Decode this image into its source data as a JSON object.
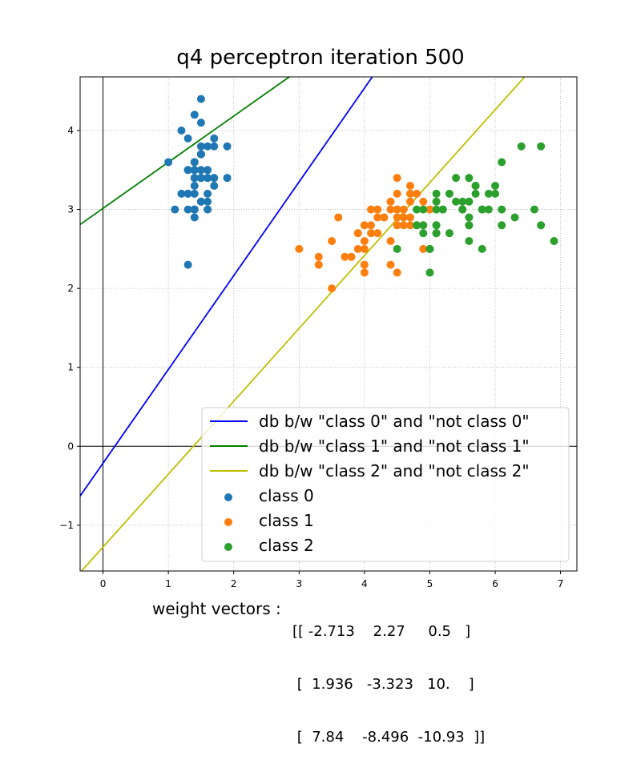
{
  "chart_data": {
    "type": "scatter",
    "title": "q4 perceptron iteration 500",
    "xlabel": "",
    "ylabel": "",
    "xlim": [
      -0.35,
      7.25
    ],
    "ylim": [
      -1.58,
      4.68
    ],
    "xticks": [
      0,
      1,
      2,
      3,
      4,
      5,
      6,
      7
    ],
    "yticks": [
      -1,
      0,
      1,
      2,
      3,
      4
    ],
    "xtick_labels": [
      "0",
      "1",
      "2",
      "3",
      "4",
      "5",
      "6",
      "7"
    ],
    "ytick_labels": [
      "−1",
      "0",
      "1",
      "2",
      "3",
      "4"
    ],
    "grid": true,
    "legend_position": "lower-right",
    "lines": [
      {
        "name": "db b/w \"class 0\" and \"not class 0\"",
        "color": "#0000ff",
        "points": [
          [
            -0.35,
            -0.63
          ],
          [
            4.12,
            4.68
          ]
        ]
      },
      {
        "name": "db b/w \"class 1\" and \"not class 1\"",
        "color": "#008000",
        "points": [
          [
            -0.35,
            2.81
          ],
          [
            2.85,
            4.68
          ]
        ]
      },
      {
        "name": "db b/w \"class 2\" and \"not class 2\"",
        "color": "#bfbf00",
        "points": [
          [
            -0.35,
            -1.6
          ],
          [
            6.45,
            4.68
          ]
        ]
      }
    ],
    "series": [
      {
        "name": "class 0",
        "color": "#1f77b4",
        "x": [
          1.4,
          1.4,
          1.3,
          1.5,
          1.4,
          1.7,
          1.4,
          1.5,
          1.4,
          1.5,
          1.5,
          1.6,
          1.4,
          1.1,
          1.2,
          1.5,
          1.3,
          1.4,
          1.7,
          1.5,
          1.7,
          1.5,
          1.0,
          1.7,
          1.9,
          1.6,
          1.6,
          1.5,
          1.4,
          1.6,
          1.6,
          1.5,
          1.5,
          1.4,
          1.5,
          1.2,
          1.3,
          1.4,
          1.3,
          1.5,
          1.3,
          1.3,
          1.3,
          1.6,
          1.9,
          1.4,
          1.6,
          1.4,
          1.5,
          1.4
        ],
        "y": [
          3.5,
          3.0,
          3.2,
          3.1,
          3.6,
          3.9,
          3.4,
          3.4,
          2.9,
          3.1,
          3.7,
          3.4,
          3.0,
          3.0,
          4.0,
          4.4,
          3.9,
          3.5,
          3.8,
          3.8,
          3.4,
          3.7,
          3.6,
          3.3,
          3.4,
          3.0,
          3.4,
          3.5,
          3.4,
          3.2,
          3.1,
          3.4,
          4.1,
          4.2,
          3.1,
          3.2,
          3.5,
          3.6,
          3.0,
          3.4,
          3.5,
          2.3,
          3.2,
          3.5,
          3.8,
          3.0,
          3.8,
          3.2,
          3.7,
          3.3
        ]
      },
      {
        "name": "class 1",
        "color": "#ff7f0e",
        "x": [
          4.7,
          4.5,
          4.9,
          4.0,
          4.6,
          4.5,
          4.7,
          3.3,
          4.6,
          3.9,
          3.5,
          4.2,
          4.0,
          4.7,
          3.6,
          4.4,
          4.5,
          4.1,
          4.5,
          3.9,
          4.8,
          4.0,
          4.9,
          4.7,
          4.3,
          4.4,
          4.8,
          5.0,
          4.5,
          3.5,
          3.8,
          3.7,
          3.9,
          5.1,
          4.5,
          4.5,
          4.7,
          4.4,
          4.1,
          4.0,
          4.4,
          4.6,
          4.0,
          3.3,
          4.2,
          4.2,
          4.2,
          4.3,
          3.0,
          4.1
        ],
        "y": [
          3.2,
          3.2,
          3.1,
          2.3,
          2.8,
          2.8,
          3.3,
          2.4,
          2.9,
          2.7,
          2.0,
          3.0,
          2.2,
          2.9,
          2.9,
          3.1,
          3.0,
          2.7,
          2.2,
          2.5,
          3.2,
          2.8,
          2.5,
          2.8,
          2.9,
          3.0,
          2.8,
          3.0,
          2.9,
          2.6,
          2.4,
          2.4,
          2.7,
          2.7,
          3.0,
          3.4,
          3.1,
          2.3,
          3.0,
          2.5,
          2.6,
          3.0,
          2.6,
          2.3,
          2.7,
          3.0,
          2.9,
          2.9,
          2.5,
          2.8
        ]
      },
      {
        "name": "class 2",
        "color": "#2ca02c",
        "x": [
          6.0,
          5.1,
          5.9,
          5.6,
          5.8,
          6.6,
          4.5,
          6.3,
          5.8,
          6.1,
          5.1,
          5.3,
          5.5,
          5.0,
          5.1,
          5.3,
          5.5,
          6.7,
          6.9,
          5.0,
          5.7,
          4.9,
          6.7,
          4.9,
          5.7,
          6.0,
          4.8,
          4.9,
          5.6,
          5.8,
          6.1,
          6.4,
          5.6,
          5.1,
          5.6,
          6.1,
          5.6,
          5.5,
          4.8,
          5.4,
          5.6,
          5.1,
          5.1,
          5.9,
          5.7,
          5.2,
          5.0,
          5.2,
          5.4,
          5.1
        ],
        "y": [
          3.3,
          2.7,
          3.0,
          2.9,
          3.0,
          3.0,
          2.5,
          2.9,
          2.5,
          3.6,
          3.2,
          2.7,
          3.0,
          2.5,
          2.8,
          3.2,
          3.0,
          3.8,
          2.6,
          2.2,
          3.2,
          2.8,
          2.8,
          2.7,
          3.3,
          3.2,
          2.8,
          3.0,
          2.8,
          3.0,
          2.8,
          3.8,
          2.8,
          2.8,
          2.6,
          3.0,
          3.4,
          3.1,
          3.0,
          3.1,
          3.1,
          3.1,
          2.7,
          3.2,
          3.3,
          3.0,
          2.5,
          3.0,
          3.4,
          3.0
        ]
      }
    ],
    "legend_entries": [
      "db b/w \"class 0\" and \"not class 0\"",
      "db b/w \"class 1\" and \"not class 1\"",
      "db b/w \"class 2\" and \"not class 2\"",
      "class 0",
      "class 1",
      "class 2"
    ]
  },
  "weights": {
    "label": "weight vectors :",
    "rows": [
      "[[ -2.713    2.27     0.5   ]",
      " [  1.936   -3.323   10.    ]",
      " [  7.84    -8.496  -10.93  ]]"
    ]
  }
}
